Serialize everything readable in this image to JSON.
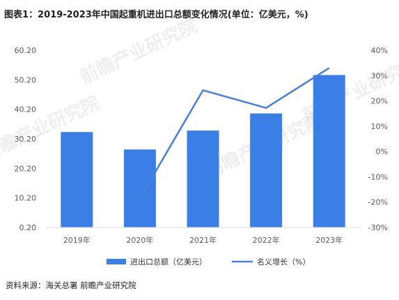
{
  "title": "图表1：2019-2023年中国起重机进出口总额变化情况(单位：亿美元，%)",
  "source": "资料来源：海关总署 前瞻产业研究院",
  "watermark": "前瞻产业研究院",
  "colors": {
    "bar": "#3b7ee6",
    "line": "#4a7fd8",
    "axis": "#d9d9d9"
  },
  "chart_data": {
    "type": "bar",
    "categories": [
      "2019年",
      "2020年",
      "2021年",
      "2022年",
      "2023年"
    ],
    "series": [
      {
        "name": "进出口总额（亿美元）",
        "type": "bar",
        "axis": "left",
        "values": [
          32.5,
          26.6,
          33.0,
          38.8,
          51.8
        ]
      },
      {
        "name": "名义增长（%）",
        "type": "line",
        "axis": "right",
        "values": [
          null,
          -18.5,
          24.2,
          17.2,
          33.0
        ]
      }
    ],
    "y_left": {
      "ticks": [
        "0.20",
        "10.20",
        "20.20",
        "30.20",
        "40.20",
        "50.20",
        "60.20"
      ],
      "min": 0.2,
      "max": 60.2
    },
    "y_right": {
      "ticks": [
        "-30%",
        "-20%",
        "-10%",
        "0%",
        "10%",
        "20%",
        "30%",
        "40%"
      ],
      "min": -30,
      "max": 40
    },
    "legend_position": "bottom",
    "grid": false
  }
}
